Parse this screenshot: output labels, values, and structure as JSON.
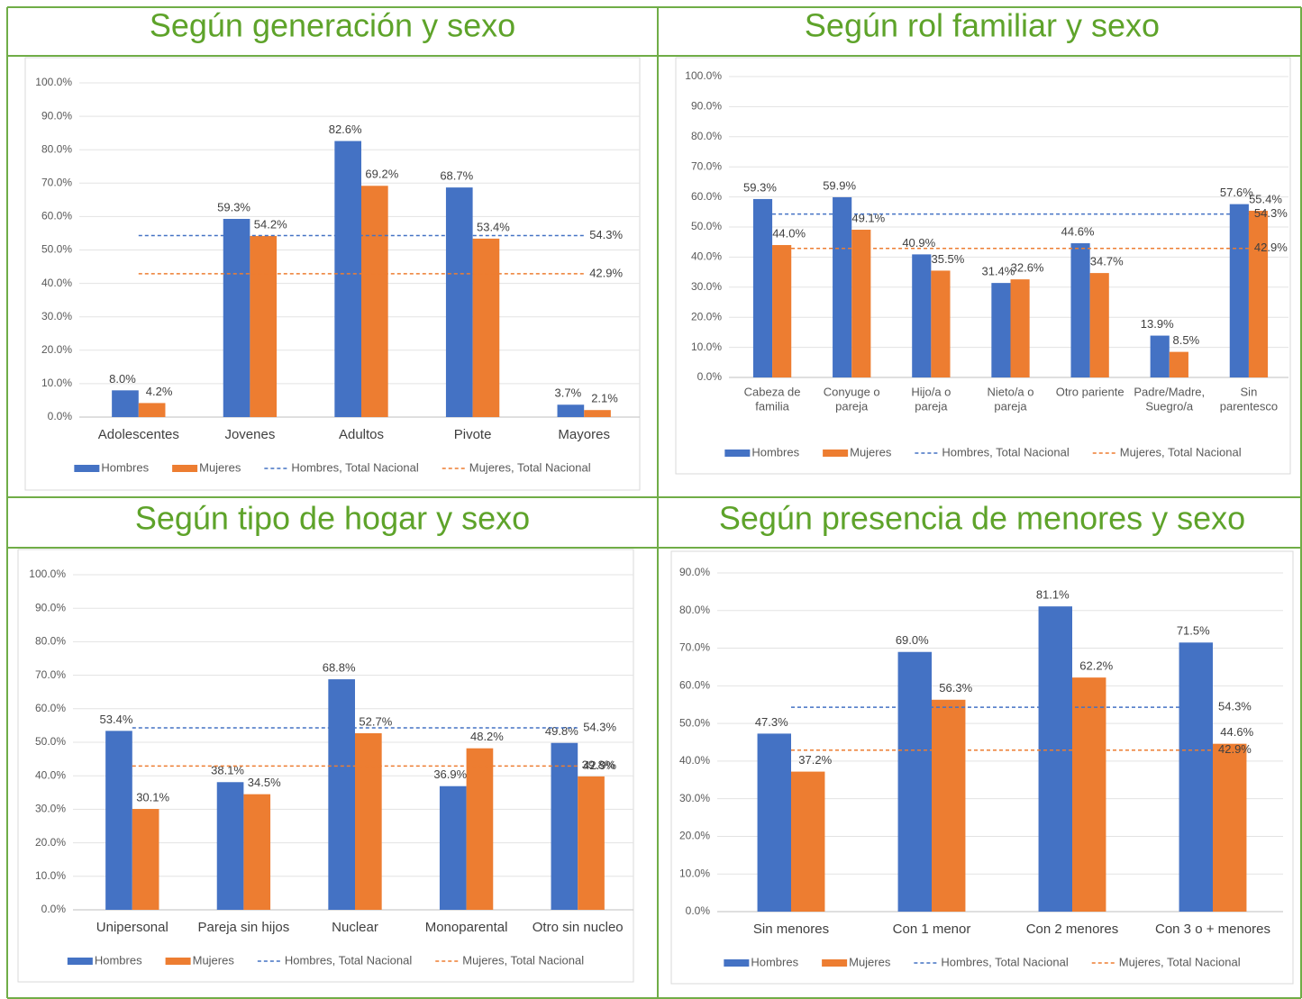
{
  "chart_data": [
    {
      "type": "bar",
      "title": "Según generación y sexo",
      "categories": [
        "Adolescentes",
        "Jovenes",
        "Adultos",
        "Pivote",
        "Mayores"
      ],
      "series": [
        {
          "name": "Hombres",
          "color": "#4472c4",
          "values": [
            8.0,
            59.3,
            82.6,
            68.7,
            3.7
          ],
          "value_labels": [
            "8.0%",
            "59.3%",
            "82.6%",
            "68.7%",
            "3.7%"
          ]
        },
        {
          "name": "Mujeres",
          "color": "#ed7d31",
          "values": [
            4.2,
            54.2,
            69.2,
            53.4,
            2.1
          ],
          "value_labels": [
            "4.2%",
            "54.2%",
            "69.2%",
            "53.4%",
            "2.1%"
          ]
        }
      ],
      "reference_lines": [
        {
          "name": "Hombres, Total Nacional",
          "color": "#4472c4",
          "value": 54.3,
          "label": "54.3%"
        },
        {
          "name": "Mujeres, Total Nacional",
          "color": "#ed7d31",
          "value": 42.9,
          "label": "42.9%"
        }
      ],
      "ylim": [
        0,
        100
      ],
      "yticks": [
        {
          "value": 0,
          "label": "0.0%"
        },
        {
          "value": 10,
          "label": "10.0%"
        },
        {
          "value": 20,
          "label": "20.0%"
        },
        {
          "value": 30,
          "label": "30.0%"
        },
        {
          "value": 40,
          "label": "40.0%"
        },
        {
          "value": 50,
          "label": "50.0%"
        },
        {
          "value": 60,
          "label": "60.0%"
        },
        {
          "value": 70,
          "label": "70.0%"
        },
        {
          "value": 80,
          "label": "80.0%"
        },
        {
          "value": 90,
          "label": "90.0%"
        },
        {
          "value": 100,
          "label": "100.0%"
        }
      ],
      "grid": true
    },
    {
      "type": "bar",
      "title": "Según rol familiar y sexo",
      "categories": [
        [
          "Cabeza de",
          "familia"
        ],
        [
          "Conyuge o",
          "pareja"
        ],
        [
          "Hijo/a o",
          "pareja"
        ],
        [
          "Nieto/a o",
          "pareja"
        ],
        [
          "Otro pariente"
        ],
        [
          "Padre/Madre,",
          "Suegro/a"
        ],
        [
          "Sin",
          "parentesco"
        ]
      ],
      "series": [
        {
          "name": "Hombres",
          "color": "#4472c4",
          "values": [
            59.3,
            59.9,
            40.9,
            31.4,
            44.6,
            13.9,
            57.6
          ],
          "value_labels": [
            "59.3%",
            "59.9%",
            "40.9%",
            "31.4%",
            "44.6%",
            "13.9%",
            "57.6%"
          ]
        },
        {
          "name": "Mujeres",
          "color": "#ed7d31",
          "values": [
            44.0,
            49.1,
            35.5,
            32.6,
            34.7,
            8.5,
            55.4
          ],
          "value_labels": [
            "44.0%",
            "49.1%",
            "35.5%",
            "32.6%",
            "34.7%",
            "8.5%",
            "55.4%"
          ]
        }
      ],
      "reference_lines": [
        {
          "name": "Hombres, Total Nacional",
          "color": "#4472c4",
          "value": 54.3,
          "label": "54.3%"
        },
        {
          "name": "Mujeres, Total Nacional",
          "color": "#ed7d31",
          "value": 42.9,
          "label": "42.9%"
        }
      ],
      "ylim": [
        0,
        100
      ],
      "yticks": [
        {
          "value": 0,
          "label": "0.0%"
        },
        {
          "value": 10,
          "label": "10.0%"
        },
        {
          "value": 20,
          "label": "20.0%"
        },
        {
          "value": 30,
          "label": "30.0%"
        },
        {
          "value": 40,
          "label": "40.0%"
        },
        {
          "value": 50,
          "label": "50.0%"
        },
        {
          "value": 60,
          "label": "60.0%"
        },
        {
          "value": 70,
          "label": "70.0%"
        },
        {
          "value": 80,
          "label": "80.0%"
        },
        {
          "value": 90,
          "label": "90.0%"
        },
        {
          "value": 100,
          "label": "100.0%"
        }
      ],
      "grid": true
    },
    {
      "type": "bar",
      "title": "Según tipo de hogar y sexo",
      "categories": [
        "Unipersonal",
        "Pareja sin hijos",
        "Nuclear",
        "Monoparental",
        "Otro sin nucleo"
      ],
      "series": [
        {
          "name": "Hombres",
          "color": "#4472c4",
          "values": [
            53.4,
            38.1,
            68.8,
            36.9,
            49.8
          ],
          "value_labels": [
            "53.4%",
            "38.1%",
            "68.8%",
            "36.9%",
            "49.8%"
          ]
        },
        {
          "name": "Mujeres",
          "color": "#ed7d31",
          "values": [
            30.1,
            34.5,
            52.7,
            48.2,
            39.8
          ],
          "value_labels": [
            "30.1%",
            "34.5%",
            "52.7%",
            "48.2%",
            "39.8%"
          ]
        }
      ],
      "reference_lines": [
        {
          "name": "Hombres, Total Nacional",
          "color": "#4472c4",
          "value": 54.3,
          "label": "54.3%"
        },
        {
          "name": "Mujeres, Total Nacional",
          "color": "#ed7d31",
          "value": 42.9,
          "label": "42.9%"
        }
      ],
      "ylim": [
        0,
        100
      ],
      "yticks": [
        {
          "value": 0,
          "label": "0.0%"
        },
        {
          "value": 10,
          "label": "10.0%"
        },
        {
          "value": 20,
          "label": "20.0%"
        },
        {
          "value": 30,
          "label": "30.0%"
        },
        {
          "value": 40,
          "label": "40.0%"
        },
        {
          "value": 50,
          "label": "50.0%"
        },
        {
          "value": 60,
          "label": "60.0%"
        },
        {
          "value": 70,
          "label": "70.0%"
        },
        {
          "value": 80,
          "label": "80.0%"
        },
        {
          "value": 90,
          "label": "90.0%"
        },
        {
          "value": 100,
          "label": "100.0%"
        }
      ],
      "grid": true
    },
    {
      "type": "bar",
      "title": "Según presencia de menores y sexo",
      "categories": [
        "Sin menores",
        "Con 1 menor",
        "Con 2 menores",
        "Con 3 o + menores"
      ],
      "series": [
        {
          "name": "Hombres",
          "color": "#4472c4",
          "values": [
            47.3,
            69.0,
            81.1,
            71.5
          ],
          "value_labels": [
            "47.3%",
            "69.0%",
            "81.1%",
            "71.5%"
          ]
        },
        {
          "name": "Mujeres",
          "color": "#ed7d31",
          "values": [
            37.2,
            56.3,
            62.2,
            44.6
          ],
          "value_labels": [
            "37.2%",
            "56.3%",
            "62.2%",
            "44.6%"
          ]
        }
      ],
      "reference_lines": [
        {
          "name": "Hombres, Total Nacional",
          "color": "#4472c4",
          "value": 54.3,
          "label": "54.3%"
        },
        {
          "name": "Mujeres, Total Nacional",
          "color": "#ed7d31",
          "value": 42.9,
          "label": "42.9%"
        }
      ],
      "ylim": [
        0,
        90
      ],
      "yticks": [
        {
          "value": 0,
          "label": "0.0%"
        },
        {
          "value": 10,
          "label": "10.0%"
        },
        {
          "value": 20,
          "label": "20.0%"
        },
        {
          "value": 30,
          "label": "30.0%"
        },
        {
          "value": 40,
          "label": "40.0%"
        },
        {
          "value": 50,
          "label": "50.0%"
        },
        {
          "value": 60,
          "label": "60.0%"
        },
        {
          "value": 70,
          "label": "70.0%"
        },
        {
          "value": 80,
          "label": "80.0%"
        },
        {
          "value": 90,
          "label": "90.0%"
        }
      ],
      "grid": true
    }
  ]
}
